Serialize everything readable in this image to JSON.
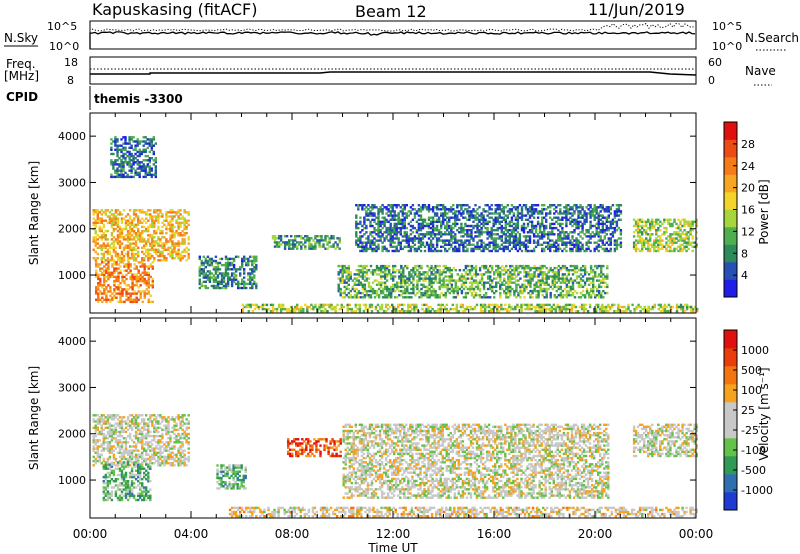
{
  "header": {
    "station": "Kapuskasing (fitACF)",
    "beam": "Beam 12",
    "date": "11/Jun/2019"
  },
  "nsky_panel": {
    "left_label": "N.Sky",
    "right_label": "N.Search",
    "left_ticks": [
      "10^5",
      "10^0"
    ],
    "right_ticks": [
      "10^5",
      "10^0"
    ]
  },
  "freq_panel": {
    "left_label_1": "Freq.",
    "left_label_2": "[MHz]",
    "right_label": "Nave",
    "left_ticks": [
      "18",
      "8"
    ],
    "right_ticks": [
      "60",
      "0"
    ]
  },
  "cpid_panel": {
    "label": "CPID",
    "value": "themis -3300"
  },
  "x_axis": {
    "label": "Time UT",
    "ticks": [
      "00:00",
      "04:00",
      "08:00",
      "12:00",
      "16:00",
      "20:00",
      "00:00"
    ]
  },
  "chart_data": [
    {
      "type": "heatmap",
      "panel": "power",
      "ylabel": "Slant Range [km]",
      "y_ticks": [
        1000,
        2000,
        3000,
        4000
      ],
      "ylim": [
        180,
        4500
      ],
      "xlim_hours": [
        0,
        24
      ],
      "colorbar": {
        "label": "Power [dB]",
        "ticks": [
          "4",
          "8",
          "12",
          "16",
          "20",
          "24",
          "28"
        ],
        "colors": [
          "#1e1ee6",
          "#2850b4",
          "#2d8a5a",
          "#4fae4f",
          "#a6d53c",
          "#f3d42a",
          "#f7a623",
          "#f57b19",
          "#ee4a14",
          "#e01010"
        ]
      },
      "regions": [
        {
          "t": [
            0.1,
            3.9
          ],
          "r": [
            1300,
            2400
          ],
          "level": 0.62
        },
        {
          "t": [
            0.2,
            2.5
          ],
          "r": [
            400,
            1300
          ],
          "level": 0.7
        },
        {
          "t": [
            0.8,
            2.6
          ],
          "r": [
            3100,
            4000
          ],
          "level": 0.2
        },
        {
          "t": [
            4.3,
            6.6
          ],
          "r": [
            700,
            1400
          ],
          "level": 0.25
        },
        {
          "t": [
            7.2,
            9.9
          ],
          "r": [
            1550,
            1850
          ],
          "level": 0.3
        },
        {
          "t": [
            6.0,
            24.0
          ],
          "r": [
            200,
            350
          ],
          "level": 0.45
        },
        {
          "t": [
            9.8,
            20.5
          ],
          "r": [
            500,
            1200
          ],
          "level": 0.35
        },
        {
          "t": [
            10.5,
            21.0
          ],
          "r": [
            1500,
            2500
          ],
          "level": 0.2
        },
        {
          "t": [
            21.5,
            24.0
          ],
          "r": [
            1500,
            2200
          ],
          "level": 0.45
        }
      ]
    },
    {
      "type": "heatmap",
      "panel": "velocity",
      "ylabel": "Slant Range [km]",
      "y_ticks": [
        1000,
        2000,
        3000,
        4000
      ],
      "ylim": [
        180,
        4500
      ],
      "xlim_hours": [
        0,
        24
      ],
      "colorbar": {
        "label": "Velocity [m s⁻¹]",
        "ticks": [
          "1000",
          "500",
          "100",
          "25",
          "-25",
          "-100",
          "-500",
          "-1000"
        ],
        "colors": [
          "#1e3cd2",
          "#2f6fb0",
          "#2e9a55",
          "#63c24a",
          "#c8c8c8",
          "#c8c8c8",
          "#f5a21e",
          "#f27512",
          "#ea3d0c",
          "#e01010"
        ]
      },
      "regions": [
        {
          "t": [
            0.1,
            3.9
          ],
          "r": [
            1300,
            2400
          ],
          "level": 0.5
        },
        {
          "t": [
            0.5,
            2.4
          ],
          "r": [
            550,
            1400
          ],
          "level": 0.35
        },
        {
          "t": [
            5.0,
            6.2
          ],
          "r": [
            800,
            1300
          ],
          "level": 0.35
        },
        {
          "t": [
            7.8,
            9.9
          ],
          "r": [
            1500,
            1900
          ],
          "level": 0.82
        },
        {
          "t": [
            5.5,
            24.0
          ],
          "r": [
            200,
            400
          ],
          "level": 0.55
        },
        {
          "t": [
            10.0,
            20.5
          ],
          "r": [
            600,
            2200
          ],
          "level": 0.5
        },
        {
          "t": [
            21.5,
            24.0
          ],
          "r": [
            1500,
            2200
          ],
          "level": 0.5
        }
      ]
    }
  ]
}
